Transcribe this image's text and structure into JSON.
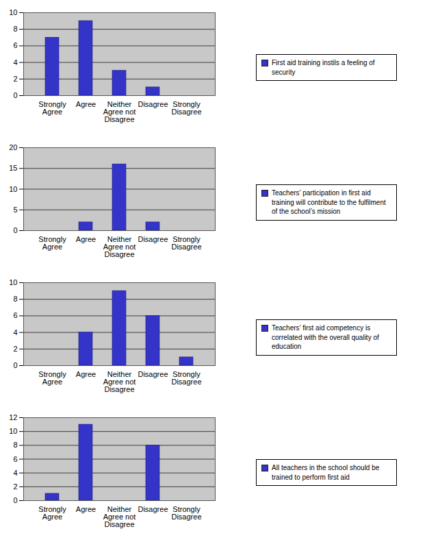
{
  "chart_data": [
    {
      "type": "bar",
      "categories": [
        "Strongly Agree",
        "Agree",
        "Neither Agree not Disagree",
        "Disagree",
        "Strongly Disagree"
      ],
      "series": [
        {
          "name": "First aid training instils a feeling of security",
          "color": "#3434c8",
          "values": [
            7,
            9,
            3,
            1,
            0
          ]
        }
      ],
      "ylim": [
        0,
        10
      ],
      "yticks": [
        0,
        2,
        4,
        6,
        8,
        10
      ],
      "grid": true,
      "legend": "right"
    },
    {
      "type": "bar",
      "categories": [
        "Strongly Agree",
        "Agree",
        "Neither Agree not Disagree",
        "Disagree",
        "Strongly Disagree"
      ],
      "series": [
        {
          "name": "Teachers’ participation in first aid training will contribute to the fulfilment of the school’s mission",
          "color": "#3434c8",
          "values": [
            0,
            2,
            16,
            2,
            0
          ]
        }
      ],
      "ylim": [
        0,
        20
      ],
      "yticks": [
        0,
        5,
        10,
        15,
        20
      ],
      "grid": true,
      "legend": "right"
    },
    {
      "type": "bar",
      "categories": [
        "Strongly Agree",
        "Agree",
        "Neither Agree not Disagree",
        "Disagree",
        "Strongly Disagree"
      ],
      "series": [
        {
          "name": "Teachers’ first aid competency is correlated with the overall quality of education",
          "color": "#3434c8",
          "values": [
            0,
            4,
            9,
            6,
            1
          ]
        }
      ],
      "ylim": [
        0,
        10
      ],
      "yticks": [
        0,
        2,
        4,
        6,
        8,
        10
      ],
      "grid": true,
      "legend": "right"
    },
    {
      "type": "bar",
      "categories": [
        "Strongly Agree",
        "Agree",
        "Neither Agree not Disagree",
        "Disagree",
        "Strongly Disagree"
      ],
      "series": [
        {
          "name": "All teachers in the school should be trained to perform first aid",
          "color": "#3434c8",
          "values": [
            1,
            11,
            0,
            8,
            0
          ]
        }
      ],
      "ylim": [
        0,
        12
      ],
      "yticks": [
        0,
        2,
        4,
        6,
        8,
        10,
        12
      ],
      "grid": true,
      "legend": "right"
    }
  ]
}
